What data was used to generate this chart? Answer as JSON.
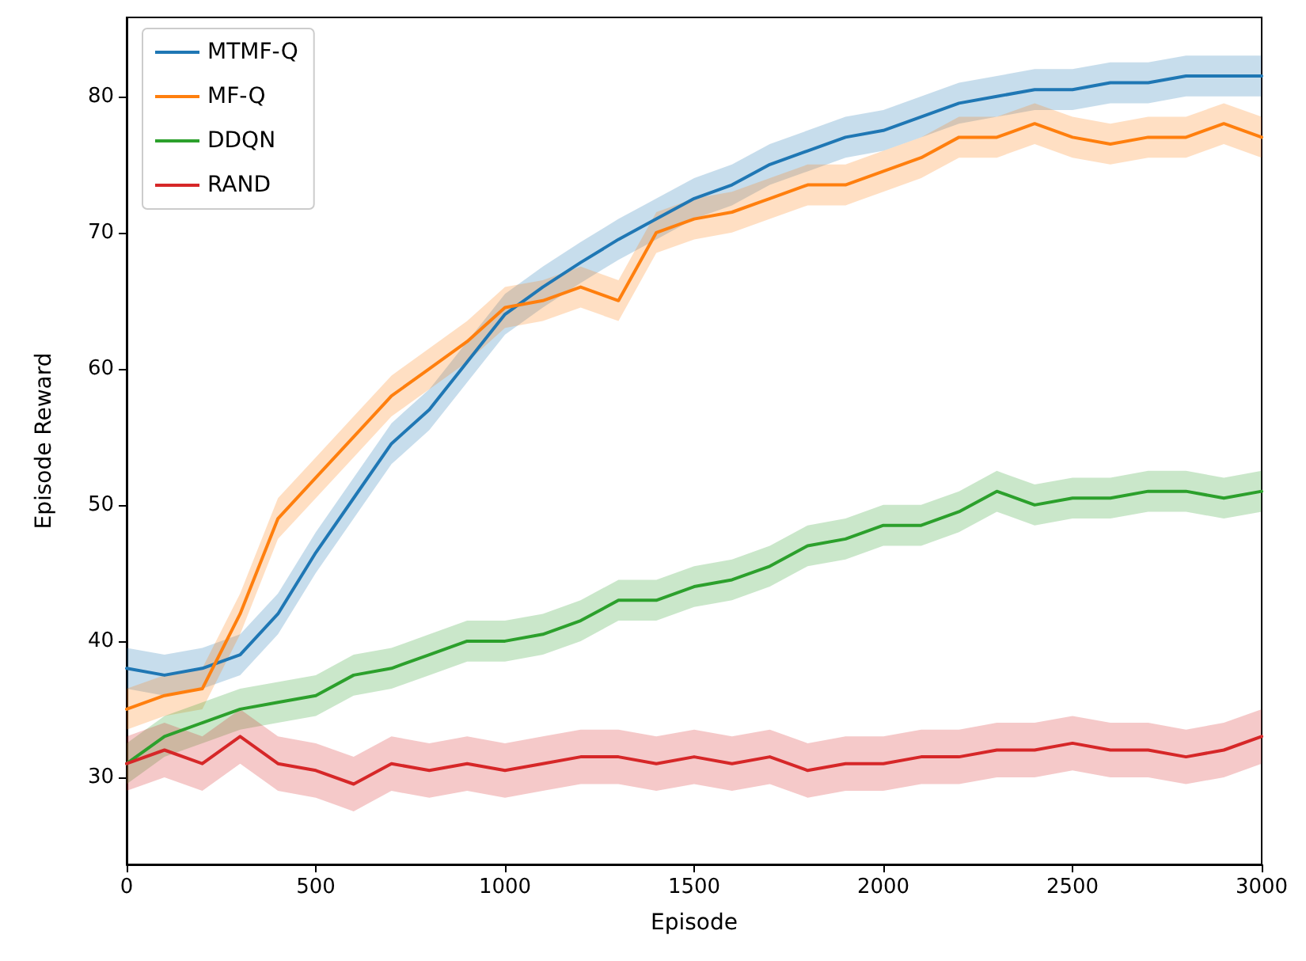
{
  "chart_data": {
    "type": "line",
    "xlabel": "Episode",
    "ylabel": "Episode Reward",
    "xlim": [
      0,
      3000
    ],
    "ylim": [
      23.6,
      85.8
    ],
    "xticks": [
      0,
      500,
      1000,
      1500,
      2000,
      2500,
      3000
    ],
    "yticks": [
      30,
      40,
      50,
      60,
      70,
      80
    ],
    "grid": false,
    "legend": "top left",
    "marker": "none",
    "line_style": "solid",
    "x": [
      0,
      100,
      200,
      300,
      400,
      500,
      600,
      700,
      800,
      900,
      1000,
      1100,
      1200,
      1300,
      1400,
      1500,
      1600,
      1700,
      1800,
      1900,
      2000,
      2100,
      2200,
      2300,
      2400,
      2500,
      2600,
      2700,
      2800,
      2900,
      3000
    ],
    "series": [
      {
        "name": "MTMF-Q",
        "color": "#1f77b4",
        "values": [
          38,
          37.5,
          38,
          39,
          42,
          46.5,
          50.5,
          54.5,
          57,
          60.5,
          64,
          66,
          67.8,
          69.5,
          71,
          72.5,
          73.5,
          75,
          76,
          77,
          77.5,
          78.5,
          79.5,
          80,
          80.5,
          80.5,
          81,
          81,
          81.5,
          81.5,
          81.5
        ],
        "lower": [
          36.5,
          36,
          36.5,
          37.5,
          40.5,
          45,
          49,
          53,
          55.5,
          59,
          62.5,
          64.5,
          66.3,
          68,
          69.5,
          71,
          72,
          73.5,
          74.5,
          75.5,
          76,
          77,
          78,
          78.5,
          79,
          79,
          79.5,
          79.5,
          80,
          80,
          80
        ],
        "upper": [
          39.5,
          39,
          39.5,
          40.5,
          43.5,
          48,
          52,
          56,
          58.5,
          62,
          65.5,
          67.5,
          69.3,
          71,
          72.5,
          74,
          75,
          76.5,
          77.5,
          78.5,
          79,
          80,
          81,
          81.5,
          82,
          82,
          82.5,
          82.5,
          83,
          83,
          83
        ]
      },
      {
        "name": "MF-Q",
        "color": "#ff7f0e",
        "values": [
          35,
          36,
          36.5,
          42,
          49,
          52,
          55,
          58,
          60,
          62,
          64.5,
          65,
          66,
          65,
          70,
          71,
          71.5,
          72.5,
          73.5,
          73.5,
          74.5,
          75.5,
          77,
          77,
          78,
          77,
          76.5,
          77,
          77,
          78,
          77
        ],
        "lower": [
          33.5,
          34.5,
          35,
          40.5,
          47.5,
          50.5,
          53.5,
          56.5,
          58.5,
          60.5,
          63,
          63.5,
          64.5,
          63.5,
          68.5,
          69.5,
          70,
          71,
          72,
          72,
          73,
          74,
          75.5,
          75.5,
          76.5,
          75.5,
          75,
          75.5,
          75.5,
          76.5,
          75.5
        ],
        "upper": [
          36.5,
          37.5,
          38,
          43.5,
          50.5,
          53.5,
          56.5,
          59.5,
          61.5,
          63.5,
          66,
          66.5,
          67.5,
          66.5,
          71.5,
          72.5,
          73,
          74,
          75,
          75,
          76,
          77,
          78.5,
          78.5,
          79.5,
          78.5,
          78,
          78.5,
          78.5,
          79.5,
          78.5
        ]
      },
      {
        "name": "DDQN",
        "color": "#2ca02c",
        "values": [
          31,
          33,
          34,
          35,
          35.5,
          36,
          37.5,
          38,
          39,
          40,
          40,
          40.5,
          41.5,
          43,
          43,
          44,
          44.5,
          45.5,
          47,
          47.5,
          48.5,
          48.5,
          49.5,
          51,
          50,
          50.5,
          50.5,
          51,
          51,
          50.5,
          51
        ],
        "lower": [
          29.5,
          31.5,
          32.5,
          33.5,
          34,
          34.5,
          36,
          36.5,
          37.5,
          38.5,
          38.5,
          39,
          40,
          41.5,
          41.5,
          42.5,
          43,
          44,
          45.5,
          46,
          47,
          47,
          48,
          49.5,
          48.5,
          49,
          49,
          49.5,
          49.5,
          49,
          49.5
        ],
        "upper": [
          32.5,
          34.5,
          35.5,
          36.5,
          37,
          37.5,
          39,
          39.5,
          40.5,
          41.5,
          41.5,
          42,
          43,
          44.5,
          44.5,
          45.5,
          46,
          47,
          48.5,
          49,
          50,
          50,
          51,
          52.5,
          51.5,
          52,
          52,
          52.5,
          52.5,
          52,
          52.5
        ]
      },
      {
        "name": "RAND",
        "color": "#d62728",
        "values": [
          31,
          32,
          31,
          33,
          31,
          30.5,
          29.5,
          31,
          30.5,
          31,
          30.5,
          31,
          31.5,
          31.5,
          31,
          31.5,
          31,
          31.5,
          30.5,
          31,
          31,
          31.5,
          31.5,
          32,
          32,
          32.5,
          32,
          32,
          31.5,
          32,
          33
        ],
        "lower": [
          29,
          30,
          29,
          31,
          29,
          28.5,
          27.5,
          29,
          28.5,
          29,
          28.5,
          29,
          29.5,
          29.5,
          29,
          29.5,
          29,
          29.5,
          28.5,
          29,
          29,
          29.5,
          29.5,
          30,
          30,
          30.5,
          30,
          30,
          29.5,
          30,
          31
        ],
        "upper": [
          33,
          34,
          33,
          35,
          33,
          32.5,
          31.5,
          33,
          32.5,
          33,
          32.5,
          33,
          33.5,
          33.5,
          33,
          33.5,
          33,
          33.5,
          32.5,
          33,
          33,
          33.5,
          33.5,
          34,
          34,
          34.5,
          34,
          34,
          33.5,
          34,
          35
        ]
      }
    ]
  }
}
